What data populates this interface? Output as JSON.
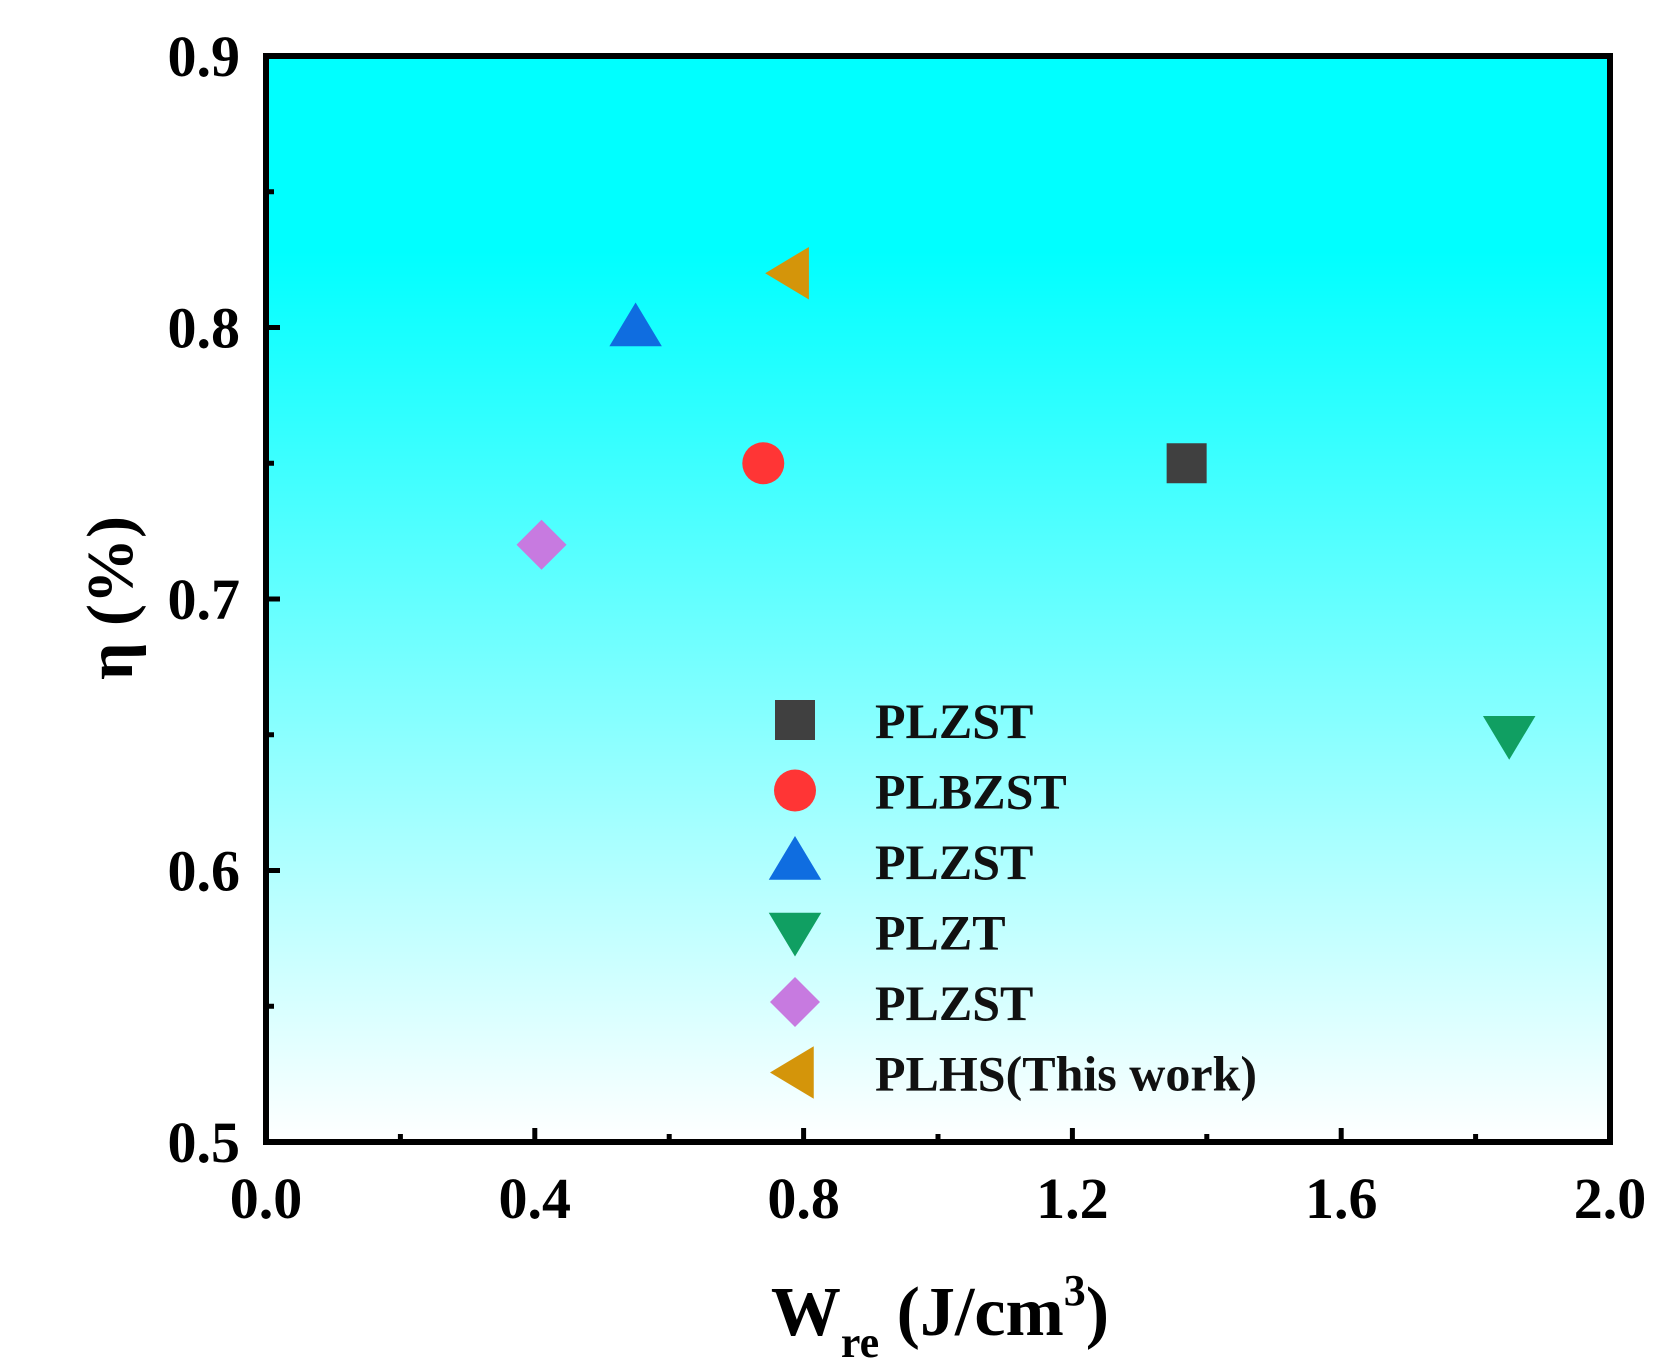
{
  "chart_data": {
    "type": "scatter",
    "title": "",
    "xlabel": {
      "main": "W",
      "sub": "re",
      "unit_open": " (J/cm",
      "sup": "3",
      "unit_close": ")"
    },
    "ylabel": "η (%)",
    "xlim": [
      0.0,
      2.0
    ],
    "ylim": [
      0.5,
      0.9
    ],
    "x_ticks": [
      0.0,
      0.4,
      0.8,
      1.2,
      1.6,
      2.0
    ],
    "x_tick_labels": [
      "0.0",
      "0.4",
      "0.8",
      "1.2",
      "1.6",
      "2.0"
    ],
    "y_ticks": [
      0.5,
      0.6,
      0.7,
      0.8,
      0.9
    ],
    "y_tick_labels": [
      "0.5",
      "0.6",
      "0.7",
      "0.8",
      "0.9"
    ],
    "background_gradient": {
      "top": "#00ffff",
      "bottom": "#ffffff"
    },
    "legend_position": "center-bottom",
    "series": [
      {
        "name": "PLZST",
        "marker": "square",
        "color": "#404040",
        "x": 1.37,
        "y": 0.75
      },
      {
        "name": "PLBZST",
        "marker": "circle",
        "color": "#ff3535",
        "x": 0.74,
        "y": 0.75
      },
      {
        "name": "PLZST",
        "marker": "triangle-up",
        "color": "#0f6de0",
        "x": 0.55,
        "y": 0.8
      },
      {
        "name": "PLZT",
        "marker": "triangle-down",
        "color": "#109f62",
        "x": 1.85,
        "y": 0.65
      },
      {
        "name": "PLZST",
        "marker": "diamond",
        "color": "#c77ae0",
        "x": 0.41,
        "y": 0.72
      },
      {
        "name": "PLHS(This work)",
        "marker": "triangle-left",
        "color": "#d4950a",
        "x": 0.78,
        "y": 0.82
      }
    ]
  }
}
